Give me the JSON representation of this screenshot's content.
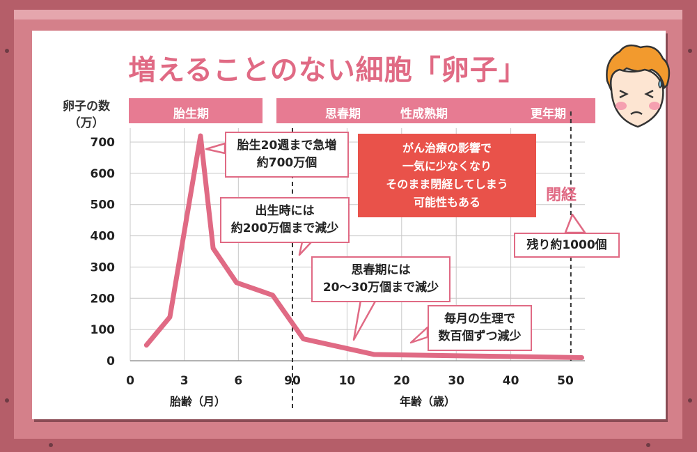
{
  "title": "増えることのない細胞「卵子」",
  "y_axis_title": "卵子の数（万）",
  "y_axis_title_line1": "卵子の数",
  "y_axis_title_line2": "（万）",
  "bands": {
    "fetal": "胎生期",
    "puberty": "思春期",
    "maturity": "性成熟期",
    "menopause_period": "更年期"
  },
  "x_labels": {
    "fetal_age": "胎齢（月）",
    "age": "年齢（歳）"
  },
  "callouts": {
    "peak": [
      "胎生20週まで急増",
      "約700万個"
    ],
    "birth": [
      "出生時には",
      "約200万個まで減少"
    ],
    "puberty": [
      "思春期には",
      "20〜30万個まで減少"
    ],
    "monthly": [
      "毎月の生理で",
      "数百個ずつ減少"
    ],
    "remaining": "残り約1000個"
  },
  "warning": [
    "がん治療の影響で",
    "一気に少なくなり",
    "そのまま閉経してしまう",
    "可能性もある"
  ],
  "menopause_label": "閉経",
  "colors": {
    "accent": "#e06a84",
    "band": "#e77b92",
    "warning_bg": "#e9524a",
    "line": "#e06a84",
    "frame": "#d4808a"
  },
  "icons": [
    "worried-person-icon"
  ],
  "chart_data": {
    "type": "line",
    "ylabel": "卵子の数（万）",
    "ylim": [
      0,
      700
    ],
    "yticks": [
      0,
      100,
      200,
      300,
      400,
      500,
      600,
      700
    ],
    "grid": true,
    "x_segments": [
      {
        "label": "胎齢（月）",
        "ticks": [
          "0",
          "3",
          "6",
          "9"
        ]
      },
      {
        "label": "年齢（歳）",
        "ticks": [
          "0",
          "10",
          "20",
          "30",
          "40",
          "50"
        ]
      }
    ],
    "series": [
      {
        "points": [
          {
            "segment": "fetal",
            "x": 0.9,
            "y": 50
          },
          {
            "segment": "fetal",
            "x": 2.2,
            "y": 140
          },
          {
            "segment": "fetal",
            "x": 3.9,
            "y": 720
          },
          {
            "segment": "fetal",
            "x": 4.6,
            "y": 360
          },
          {
            "segment": "fetal",
            "x": 5.9,
            "y": 250
          },
          {
            "segment": "fetal",
            "x": 7.9,
            "y": 210
          },
          {
            "segment": "age",
            "x": 2,
            "y": 70
          },
          {
            "segment": "age",
            "x": 15,
            "y": 20
          },
          {
            "segment": "age",
            "x": 53,
            "y": 10
          }
        ]
      }
    ],
    "markers": [
      {
        "segment": "age",
        "x": 0,
        "label": "",
        "style": "dashed"
      },
      {
        "segment": "age",
        "x": 51,
        "label": "閉経",
        "style": "dashed"
      }
    ]
  }
}
